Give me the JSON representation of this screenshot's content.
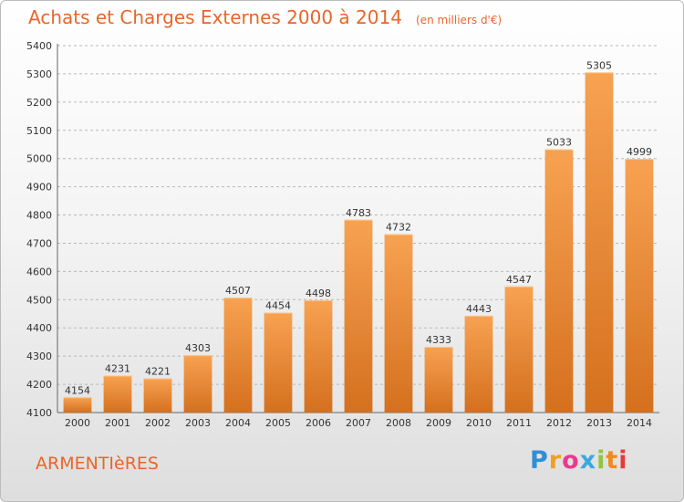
{
  "chart_data": {
    "type": "bar",
    "title": "Achats et Charges Externes 2000 à 2014",
    "subtitle": "(en milliers d'€)",
    "categories": [
      "2000",
      "2001",
      "2002",
      "2003",
      "2004",
      "2005",
      "2006",
      "2007",
      "2008",
      "2009",
      "2010",
      "2011",
      "2012",
      "2013",
      "2014"
    ],
    "values": [
      4154,
      4231,
      4221,
      4303,
      4507,
      4454,
      4498,
      4783,
      4732,
      4333,
      4443,
      4547,
      5033,
      5305,
      4999
    ],
    "ylim": [
      4100,
      5400
    ],
    "yticks": [
      4100,
      4200,
      4300,
      4400,
      4500,
      4600,
      4700,
      4800,
      4900,
      5000,
      5100,
      5200,
      5300,
      5400
    ],
    "grid": true,
    "xlabel": "",
    "ylabel": "",
    "colors": {
      "bar_light": "#f7a252",
      "bar_dark": "#d4701e",
      "title": "#e8662a",
      "grid": "#b8b8b8"
    }
  },
  "city": "ARMENTIèRES",
  "logo": {
    "letters": [
      "P",
      "r",
      "o",
      "x",
      "i",
      "t",
      "i"
    ],
    "colors": [
      "#2f8fd6",
      "#f0a020",
      "#e83a8e",
      "#3aa8e0",
      "#8dc63f",
      "#f08a20",
      "#e83a3a"
    ]
  }
}
